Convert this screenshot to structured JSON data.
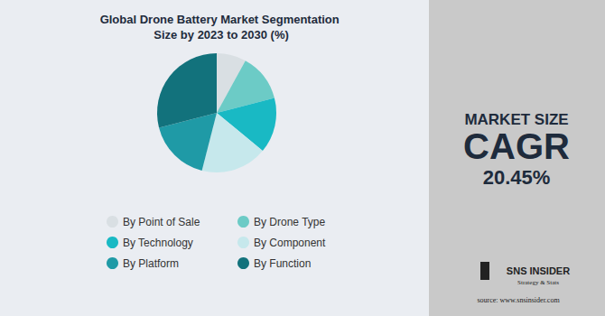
{
  "chart_data": {
    "type": "pie",
    "title": "Global Drone Battery Market Segmentation Size by 2023 to 2030 (%)",
    "categories": [
      "By Point of Sale",
      "By Drone Type",
      "By Technology",
      "By Component",
      "By Platform",
      "By Function"
    ],
    "values": [
      8,
      13,
      15,
      18,
      17,
      29
    ],
    "colors": [
      "#d9dfe3",
      "#6ccbc6",
      "#19b9c4",
      "#c6e8ec",
      "#1f9aa6",
      "#12727c"
    ],
    "legend": "bottom",
    "data_labels": false,
    "annotations": [
      "MARKET SIZE",
      "CAGR",
      "20.45%",
      "SNS INSIDER",
      "Strategy & Stats",
      "source: www.snsinsider.com"
    ]
  }
}
